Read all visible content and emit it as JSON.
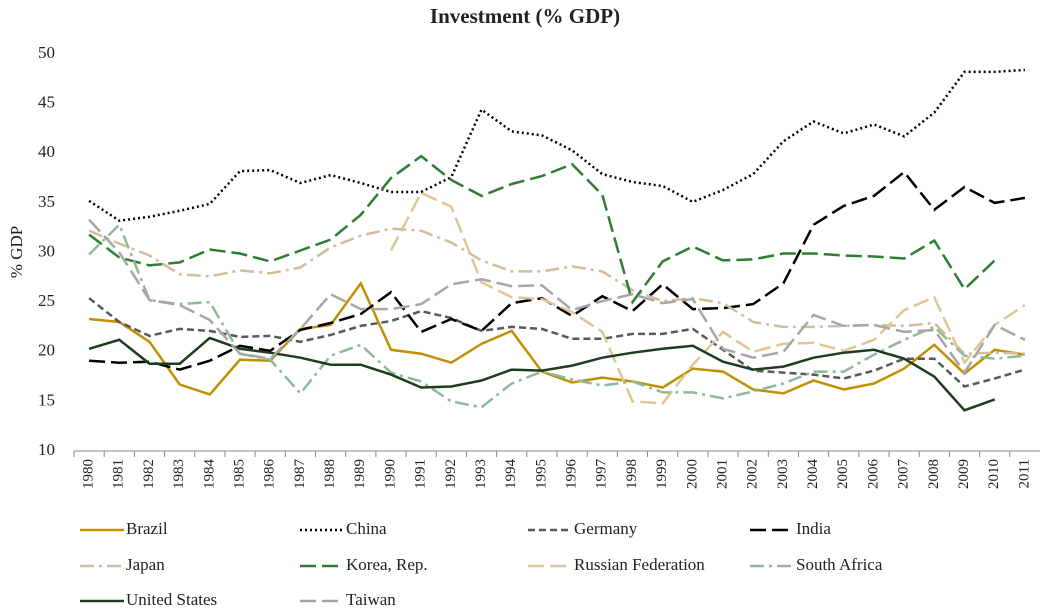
{
  "chart_data": {
    "type": "line",
    "title": "Investment (% GDP)",
    "y_label": "% GDP",
    "categories": [
      "1980",
      "1981",
      "1982",
      "1983",
      "1984",
      "1985",
      "1986",
      "1987",
      "1988",
      "1989",
      "1990",
      "1991",
      "1992",
      "1993",
      "1994",
      "1995",
      "1996",
      "1997",
      "1998",
      "1999",
      "2000",
      "2001",
      "2002",
      "2003",
      "2004",
      "2005",
      "2006",
      "2007",
      "2008",
      "2009",
      "2010",
      "2011"
    ],
    "ylim": [
      10,
      50
    ],
    "yticks": [
      10,
      15,
      20,
      25,
      30,
      35,
      40,
      45,
      50
    ],
    "grid": false,
    "legend": "bottom",
    "series": [
      {
        "name": "Brazil",
        "color": "#bf9000",
        "line_style": "solid",
        "values": [
          23.3,
          23.0,
          21.0,
          16.7,
          15.7,
          19.2,
          19.1,
          22.3,
          22.7,
          26.9,
          20.2,
          19.8,
          18.9,
          20.8,
          22.1,
          18.0,
          16.9,
          17.4,
          17.0,
          16.4,
          18.3,
          18.0,
          16.2,
          15.8,
          17.1,
          16.2,
          16.8,
          18.3,
          20.7,
          17.8,
          20.2,
          19.7
        ]
      },
      {
        "name": "China",
        "color": "#000000",
        "line_style": "dotted",
        "values": [
          35.2,
          33.2,
          33.6,
          34.2,
          34.9,
          38.2,
          38.3,
          37.0,
          37.8,
          37.0,
          36.1,
          36.1,
          37.6,
          44.4,
          42.2,
          41.8,
          40.3,
          37.9,
          37.1,
          36.7,
          35.1,
          36.3,
          37.9,
          41.2,
          43.2,
          42.0,
          42.9,
          41.7,
          44.1,
          48.2,
          48.2,
          48.4
        ]
      },
      {
        "name": "Germany",
        "color": "#595959",
        "line_style": "dash",
        "values": [
          25.4,
          23.0,
          21.6,
          22.3,
          22.1,
          21.5,
          21.6,
          21.0,
          21.7,
          22.6,
          23.1,
          24.1,
          23.4,
          22.1,
          22.5,
          22.3,
          21.3,
          21.3,
          21.8,
          21.8,
          22.3,
          20.2,
          18.1,
          17.9,
          17.7,
          17.3,
          18.1,
          19.3,
          19.3,
          16.5,
          17.3,
          18.2
        ]
      },
      {
        "name": "India",
        "color": "#000000",
        "line_style": "long-dash",
        "values": [
          19.1,
          18.9,
          19.0,
          18.2,
          19.1,
          20.6,
          20.1,
          22.2,
          22.9,
          23.8,
          26.0,
          22.0,
          23.3,
          22.1,
          24.9,
          25.4,
          23.6,
          25.6,
          24.1,
          26.8,
          24.3,
          24.4,
          24.8,
          26.9,
          32.8,
          34.7,
          35.7,
          38.1,
          34.3,
          36.6,
          35.0,
          35.5
        ]
      },
      {
        "name": "Japan",
        "color": "#d3bc9c",
        "line_style": "dash-dot",
        "values": [
          32.2,
          30.9,
          29.7,
          27.8,
          27.6,
          28.2,
          27.9,
          28.5,
          30.5,
          31.7,
          32.4,
          32.2,
          31.0,
          29.2,
          28.1,
          28.1,
          28.6,
          28.1,
          26.2,
          25.1,
          25.4,
          24.9,
          23.0,
          22.5,
          22.5,
          22.6,
          22.7,
          22.6,
          22.9,
          19.8,
          19.9,
          19.8
        ]
      },
      {
        "name": "Korea, Rep.",
        "color": "#2e7d32",
        "line_style": "long-dash",
        "values": [
          31.8,
          29.5,
          28.7,
          29.0,
          30.3,
          29.9,
          29.1,
          30.2,
          31.3,
          33.8,
          37.5,
          39.7,
          37.3,
          35.7,
          36.9,
          37.7,
          38.9,
          35.8,
          25.0,
          29.1,
          30.6,
          29.2,
          29.3,
          29.9,
          29.9,
          29.7,
          29.6,
          29.4,
          31.2,
          26.3,
          29.2,
          null
        ]
      },
      {
        "name": "Russian Federation",
        "color": "#e2c497",
        "line_style": "long-dash",
        "values": [
          null,
          null,
          null,
          null,
          null,
          null,
          null,
          null,
          null,
          null,
          30.2,
          36.0,
          34.6,
          27.0,
          25.5,
          25.3,
          24.0,
          22.0,
          15.0,
          14.8,
          18.7,
          22.0,
          20.0,
          20.8,
          20.9,
          20.1,
          21.2,
          24.2,
          25.5,
          18.9,
          22.7,
          24.7
        ]
      },
      {
        "name": "South Africa",
        "color": "#8fb996",
        "line_style": "dash-dot",
        "values": [
          29.8,
          32.8,
          25.2,
          24.8,
          25.0,
          19.8,
          19.2,
          15.8,
          19.6,
          20.7,
          17.9,
          17.0,
          15.0,
          14.4,
          16.8,
          18.0,
          17.2,
          16.6,
          17.0,
          15.9,
          15.9,
          15.3,
          16.0,
          16.8,
          18.0,
          18.0,
          19.7,
          21.2,
          22.5,
          19.6,
          19.3,
          19.6
        ]
      },
      {
        "name": "United States",
        "color": "#1e3d1e",
        "line_style": "solid",
        "values": [
          20.3,
          21.2,
          18.8,
          18.8,
          21.4,
          20.3,
          19.9,
          19.4,
          18.7,
          18.7,
          17.7,
          16.4,
          16.5,
          17.1,
          18.2,
          18.1,
          18.6,
          19.4,
          19.9,
          20.3,
          20.6,
          19.0,
          18.2,
          18.5,
          19.4,
          19.9,
          20.2,
          19.3,
          17.5,
          14.1,
          15.2,
          null
        ]
      },
      {
        "name": "Taiwan",
        "color": "#a6a6a6",
        "line_style": "long-dash",
        "values": [
          33.3,
          30.0,
          25.2,
          24.7,
          23.2,
          19.8,
          19.3,
          22.3,
          25.8,
          24.3,
          24.3,
          24.8,
          26.8,
          27.3,
          26.6,
          26.7,
          24.2,
          25.1,
          25.8,
          24.9,
          25.3,
          20.3,
          19.4,
          20.0,
          23.7,
          22.6,
          22.7,
          22.0,
          22.2,
          17.9,
          22.7,
          21.2
        ]
      }
    ]
  }
}
